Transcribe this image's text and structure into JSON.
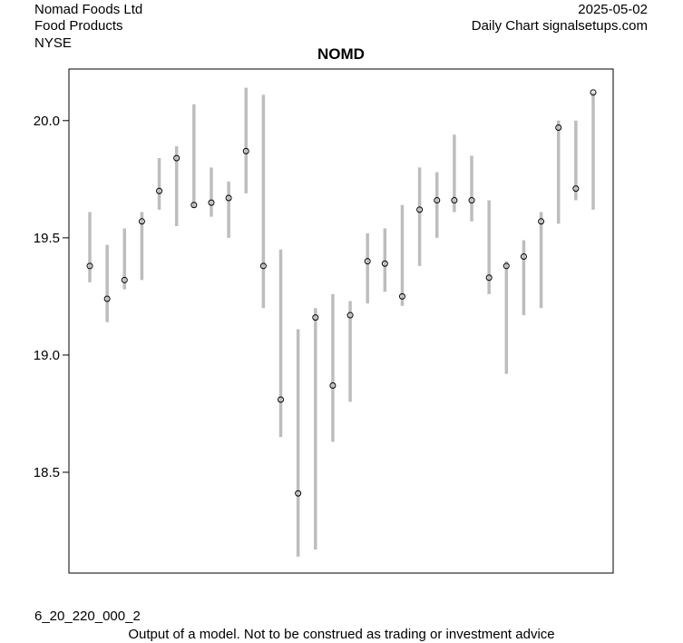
{
  "header": {
    "company": "Nomad Foods Ltd",
    "industry": "Food Products",
    "exchange": "NYSE",
    "date": "2025-05-02",
    "source": "Daily Chart signalsetups.com"
  },
  "footer": {
    "model_code": "6_20_220_000_2",
    "disclaimer": "Output of a model. Not to be construed as trading or investment advice"
  },
  "chart_data": {
    "type": "line",
    "title": "NOMD",
    "xlabel": "",
    "ylabel": "",
    "ylim": [
      18.07,
      20.22
    ],
    "yticks": [
      "18.5",
      "19.0",
      "19.5",
      "20.0"
    ],
    "grid": false,
    "legend": "none",
    "colors": {
      "range": "#bdbdbd",
      "marker": "#000000"
    },
    "series": [
      {
        "low": [
          19.31,
          19.14,
          19.28,
          19.32,
          19.62,
          19.55,
          19.63,
          19.59,
          19.5,
          19.69,
          19.2,
          18.65,
          18.14,
          18.17,
          18.63,
          18.8,
          19.22,
          19.27,
          19.21,
          19.38,
          19.5,
          19.61,
          19.57,
          19.26,
          18.92,
          19.17,
          19.2,
          19.56,
          19.66,
          19.62
        ],
        "high": [
          19.61,
          19.47,
          19.54,
          19.61,
          19.84,
          19.89,
          20.07,
          19.8,
          19.74,
          20.14,
          20.11,
          19.45,
          19.11,
          19.2,
          19.26,
          19.23,
          19.52,
          19.54,
          19.64,
          19.8,
          19.78,
          19.94,
          19.85,
          19.66,
          19.4,
          19.49,
          19.61,
          20.0,
          20.0,
          20.12
        ],
        "close": [
          19.38,
          19.24,
          19.32,
          19.57,
          19.7,
          19.84,
          19.64,
          19.65,
          19.67,
          19.87,
          19.38,
          18.81,
          18.41,
          19.16,
          18.87,
          19.17,
          19.4,
          19.39,
          19.25,
          19.62,
          19.66,
          19.66,
          19.66,
          19.33,
          19.38,
          19.42,
          19.57,
          19.97,
          19.71,
          20.12
        ]
      }
    ]
  }
}
